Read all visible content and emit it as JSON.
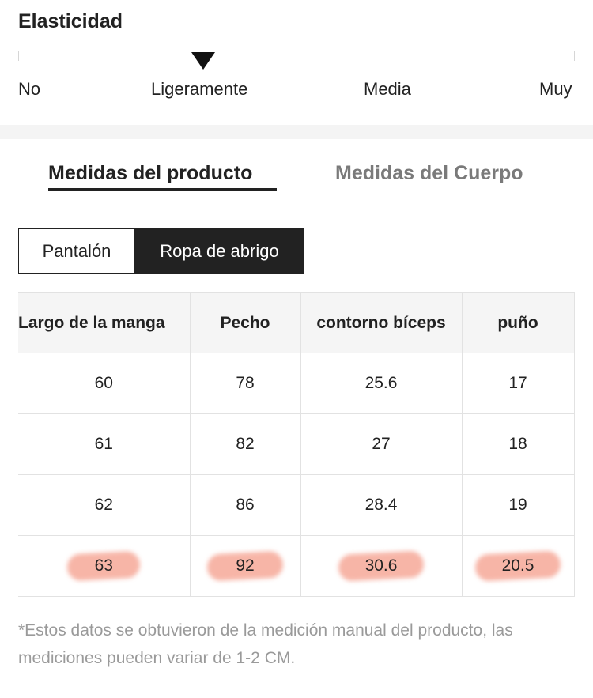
{
  "elasticity": {
    "title": "Elasticidad",
    "levels": [
      "No",
      "Ligeramente",
      "Media",
      "Muy"
    ],
    "selected": "Ligeramente"
  },
  "tabs": {
    "product": "Medidas del producto",
    "body": "Medidas del Cuerpo",
    "active": "product"
  },
  "segments": {
    "pants": "Pantalón",
    "outerwear": "Ropa de abrigo",
    "active": "outerwear"
  },
  "table": {
    "headers": [
      "Largo de la manga",
      "Pecho",
      "contorno bíceps",
      "puño"
    ],
    "rows": [
      [
        "60",
        "78",
        "25.6",
        "17"
      ],
      [
        "61",
        "82",
        "27",
        "18"
      ],
      [
        "62",
        "86",
        "28.4",
        "19"
      ],
      [
        "63",
        "92",
        "30.6",
        "20.5"
      ]
    ],
    "highlight_color": "#f0785f"
  },
  "footnote": "*Estos datos se obtuvieron de la medición manual del producto, las mediciones pueden variar de 1-2 CM."
}
